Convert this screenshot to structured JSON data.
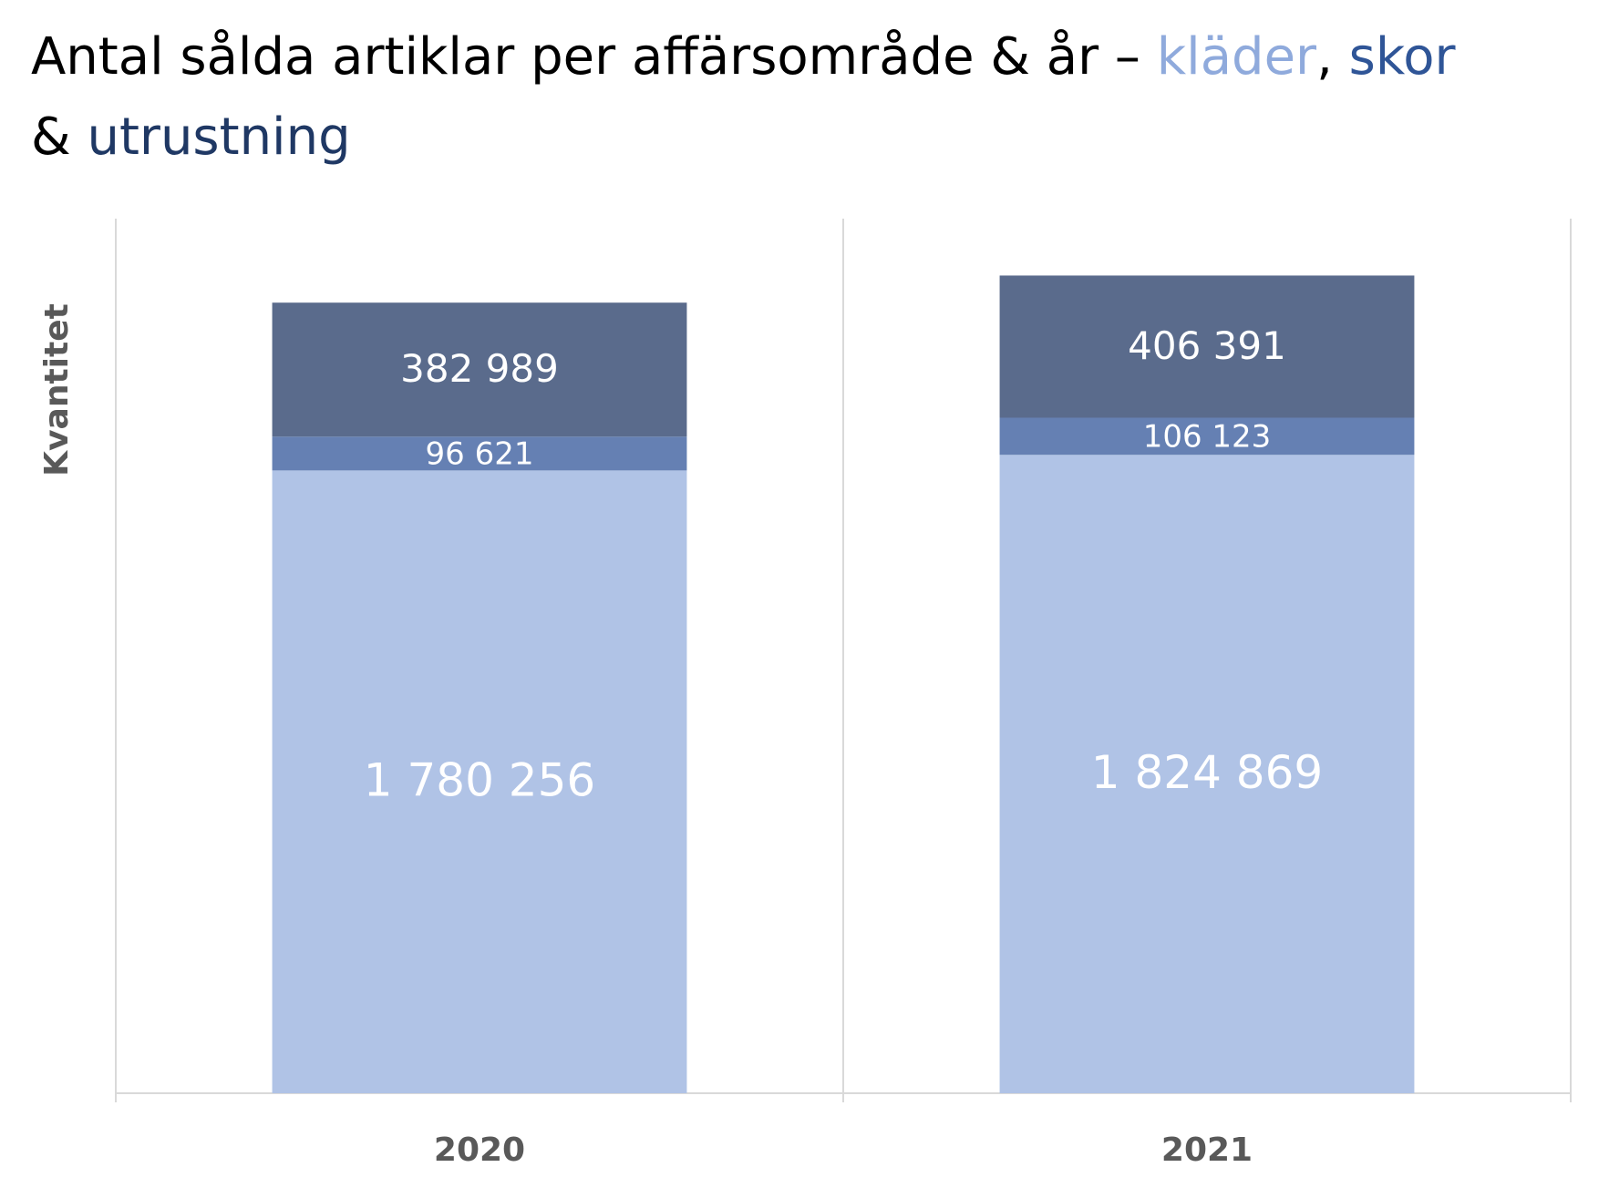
{
  "chart_data": {
    "type": "stacked_bar",
    "title": [
      "Antal sålda artiklar per affärsområde & år – ",
      ", ",
      "& "
    ],
    "y_label": "Kvantitet",
    "categories": [
      "2020",
      "2021"
    ],
    "series": [
      {
        "name": "kläder",
        "color": "#b0c3e6",
        "values": [
          1780256,
          1824869
        ],
        "value_labels": [
          "1 780 256",
          "1 824 869"
        ]
      },
      {
        "name": "skor",
        "color": "#6580b3",
        "values": [
          96621,
          106123
        ],
        "value_labels": [
          "96 621",
          "106 123"
        ]
      },
      {
        "name": "utrustning",
        "color": "#5a6b8c",
        "values": [
          382989,
          406391
        ],
        "value_labels": [
          "382 989",
          "406 391"
        ]
      }
    ],
    "title_colors": [
      "#8faadc",
      "#2f5597",
      "#1f3864"
    ],
    "ylim": [
      0,
      2500000
    ]
  }
}
